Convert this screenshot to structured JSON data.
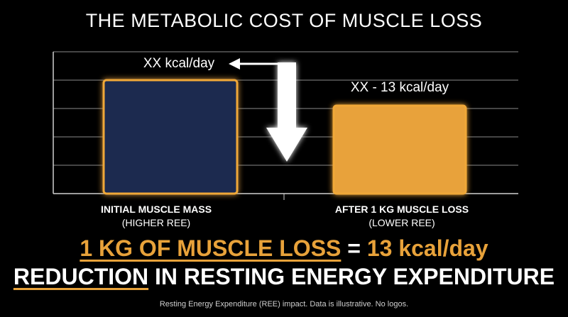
{
  "chart_data": {
    "type": "bar",
    "title": "THE METABOLIC COST OF MUSCLE LOSS",
    "categories": [
      {
        "main": "INITIAL MUSCLE MASS",
        "sub": "(HIGHER REE)"
      },
      {
        "main": "AFTER 1 KG MUSCLE LOSS",
        "sub": "(LOWER REE)"
      }
    ],
    "values": [
      4.0,
      3.1
    ],
    "data_labels": [
      "XX kcal/day",
      "XX - 13 kcal/day"
    ],
    "ylim": [
      0,
      5
    ],
    "grid": true,
    "colors": {
      "bar0_fill": "#1c2a4f",
      "bar1_fill": "#e8a23a",
      "glow": "#f0a838",
      "grid": "#8a8a8a"
    }
  },
  "headline": {
    "part1": "1 KG OF MUSCLE LOSS",
    "part2": " = ",
    "part3": "13 kcal/day",
    "line2_part1": "REDUCTION",
    "line2_part2": " IN RESTING ENERGY EXPENDITURE"
  },
  "footnote": "Resting Energy Expenditure (REE) impact. Data is illustrative. No logos."
}
